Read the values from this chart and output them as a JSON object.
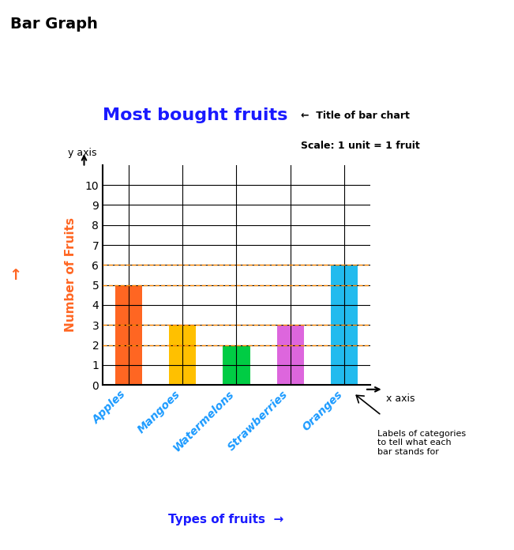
{
  "title": "Most bought fruits",
  "title_color": "#1a1aff",
  "title_fontsize": 16,
  "categories": [
    "Apples",
    "Mangoes",
    "Watermelons",
    "Strawberries",
    "Oranges"
  ],
  "values": [
    5,
    3,
    2,
    3,
    6
  ],
  "bar_colors": [
    "#FF6622",
    "#FFC000",
    "#00CC44",
    "#DD66DD",
    "#22BBEE"
  ],
  "xlabel": "Types of fruits",
  "xlabel_color": "#1a1aff",
  "ylabel": "Number of Fruits",
  "ylabel_color": "#FF6622",
  "ylim": [
    0,
    11
  ],
  "yticks": [
    0,
    1,
    2,
    3,
    4,
    5,
    6,
    7,
    8,
    9,
    10
  ],
  "grid_color": "#000000",
  "background_color": "#ffffff",
  "dashed_line_y": [
    2,
    3,
    5,
    6
  ],
  "dashed_line_color": "#FF8800",
  "header_title": "Bar Graph",
  "scale_text": "Scale: 1 unit = 1 fruit",
  "title_arrow_text": "Title of bar chart",
  "yaxis_label": "y axis",
  "xaxis_label": "x axis",
  "labels_arrow_text": "Labels of categories\nto tell what each\nbar stands for",
  "cat_label_color": "#1a9aff"
}
